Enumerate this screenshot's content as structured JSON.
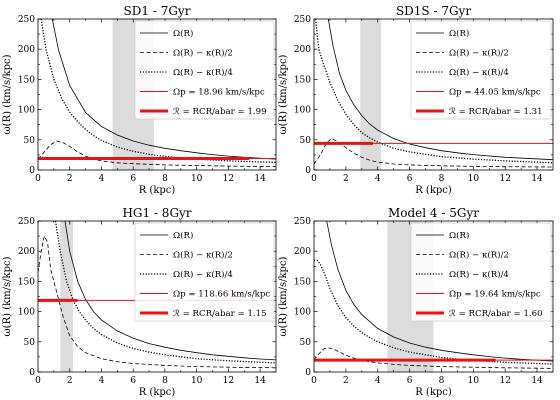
{
  "curve_legend": [
    "Ω(R)",
    "Ω(R) − κ(R)/2",
    "Ω(R) − κ(R)/4"
  ],
  "chart_data": [
    {
      "type": "line",
      "title": "SD1 - 7Gyr",
      "xlabel": "R (kpc)",
      "ylabel": "ω(R) (km/s/kpc)",
      "xlim": [
        0,
        15
      ],
      "ylim": [
        0,
        250
      ],
      "xticks": [
        0,
        2,
        4,
        6,
        8,
        10,
        12,
        14
      ],
      "yticks": [
        0,
        50,
        100,
        150,
        200,
        250
      ],
      "legend": "top-right",
      "shaded_band": [
        4.7,
        7.3
      ],
      "omega_p_label": "Ωp = 18.96 km/s/kpc",
      "ratio_label": "ℛ = RCR/abar = 1.99",
      "omega_p": 18.96,
      "bar_segment_x": [
        0,
        13.3
      ],
      "series": [
        {
          "x": [
            0.9,
            1.3,
            2,
            3,
            4,
            5,
            6,
            7,
            8,
            9,
            10,
            11,
            12,
            13,
            14,
            15
          ],
          "values": [
            250,
            198,
            140,
            95,
            72,
            58,
            48,
            41,
            36,
            32,
            28.5,
            25.5,
            23,
            21,
            19.5,
            18
          ]
        },
        {
          "x": [
            0,
            0.4,
            0.8,
            1.2,
            1.6,
            2,
            2.5,
            3,
            3.5,
            4,
            5,
            6,
            7,
            8,
            9,
            10,
            12,
            15
          ],
          "values": [
            18,
            30,
            42,
            48,
            45,
            39,
            30,
            23,
            18,
            15,
            12,
            10.5,
            9.5,
            8.5,
            8,
            7.5,
            6.5,
            5.5
          ]
        },
        {
          "x": [
            0.2,
            0.5,
            1,
            1.5,
            2,
            2.5,
            3,
            3.5,
            4,
            5,
            6,
            7,
            8,
            10,
            12,
            15
          ],
          "values": [
            250,
            200,
            150,
            118,
            96,
            80,
            67,
            57,
            49,
            38,
            31,
            26,
            22.5,
            18,
            15,
            12.5
          ]
        }
      ]
    },
    {
      "type": "line",
      "title": "SD1S - 7Gyr",
      "xlabel": "R (kpc)",
      "ylabel": "ω(R) (km/s/kpc)",
      "xlim": [
        0,
        15
      ],
      "ylim": [
        0,
        250
      ],
      "xticks": [
        0,
        2,
        4,
        6,
        8,
        10,
        12,
        14
      ],
      "yticks": [
        0,
        50,
        100,
        150,
        200,
        250
      ],
      "legend": "top-right",
      "shaded_band": [
        2.9,
        4.2
      ],
      "omega_p_label": "Ωp = 44.05 km/s/kpc",
      "ratio_label": "ℛ = RCR/abar = 1.31",
      "omega_p": 44.05,
      "bar_segment_x": [
        0,
        3.7
      ],
      "series": [
        {
          "x": [
            0.9,
            1.2,
            1.6,
            2,
            2.5,
            3,
            3.5,
            4,
            5,
            6,
            7,
            8,
            9,
            10,
            12,
            15
          ],
          "values": [
            250,
            205,
            160,
            132,
            108,
            90,
            76,
            66,
            52,
            43,
            37,
            32,
            28.5,
            25.5,
            21,
            17
          ]
        },
        {
          "x": [
            0,
            0.4,
            0.8,
            1.1,
            1.5,
            2,
            2.5,
            3,
            3.5,
            4,
            5,
            6,
            8,
            10,
            12,
            15
          ],
          "values": [
            10,
            25,
            45,
            52,
            47,
            37,
            28,
            21,
            16,
            13,
            10,
            8.5,
            7,
            6,
            5.5,
            5
          ]
        },
        {
          "x": [
            0.1,
            0.3,
            0.6,
            1,
            1.5,
            2,
            2.5,
            3,
            3.5,
            4,
            5,
            6,
            8,
            10,
            12,
            15
          ],
          "values": [
            250,
            200,
            175,
            145,
            115,
            92,
            75,
            62,
            53,
            46,
            36,
            30,
            22,
            18,
            15,
            12
          ]
        }
      ]
    },
    {
      "type": "line",
      "title": "HG1 - 8Gyr",
      "xlabel": "R (kpc)",
      "ylabel": "ω(R) (km/s/kpc)",
      "xlim": [
        0,
        15
      ],
      "ylim": [
        0,
        250
      ],
      "xticks": [
        0,
        2,
        4,
        6,
        8,
        10,
        12,
        14
      ],
      "yticks": [
        0,
        50,
        100,
        150,
        200,
        250
      ],
      "legend": "top-right",
      "shaded_band": [
        1.4,
        2.2
      ],
      "omega_p_label": "Ωp = 118.66 km/s/kpc",
      "ratio_label": "ℛ = RCR/abar = 1.15",
      "omega_p": 118.66,
      "bar_segment_x": [
        0,
        2.5
      ],
      "series": [
        {
          "x": [
            1.7,
            2,
            2.5,
            3,
            3.5,
            4,
            5,
            6,
            7,
            8,
            9,
            10,
            11,
            12,
            13,
            14,
            15
          ],
          "values": [
            250,
            200,
            150,
            120,
            100,
            86,
            68,
            56,
            47,
            41,
            36,
            32,
            28.5,
            26,
            23.5,
            21.5,
            20
          ]
        },
        {
          "x": [
            0,
            0.2,
            0.4,
            0.6,
            0.8,
            1,
            1.3,
            1.6,
            2,
            2.5,
            3,
            4,
            5,
            6,
            8,
            10,
            12,
            15
          ],
          "values": [
            165,
            200,
            225,
            215,
            170,
            150,
            120,
            90,
            60,
            42,
            32,
            22,
            17,
            14,
            11,
            9,
            8,
            7
          ]
        },
        {
          "x": [
            1.1,
            1.4,
            1.8,
            2.2,
            2.6,
            3,
            3.5,
            4,
            5,
            6,
            7,
            8,
            10,
            12,
            15
          ],
          "values": [
            250,
            200,
            150,
            120,
            100,
            86,
            72,
            62,
            48,
            39,
            33,
            28.5,
            22,
            18.5,
            15
          ]
        }
      ]
    },
    {
      "type": "line",
      "title": "Model 4 - 5Gyr",
      "xlabel": "R (kpc)",
      "ylabel": "ω(R) (km/s/kpc)",
      "xlim": [
        0,
        15
      ],
      "ylim": [
        0,
        250
      ],
      "xticks": [
        0,
        2,
        4,
        6,
        8,
        10,
        12,
        14
      ],
      "yticks": [
        0,
        50,
        100,
        150,
        200,
        250
      ],
      "legend": "top-right",
      "shaded_band": [
        4.6,
        7.5
      ],
      "omega_p_label": "Ωp = 19.64 km/s/kpc",
      "ratio_label": "ℛ = RCR/abar = 1.60",
      "omega_p": 19.64,
      "bar_segment_x": [
        0,
        11.4
      ],
      "series": [
        {
          "x": [
            0.8,
            1.1,
            1.5,
            2,
            2.5,
            3,
            4,
            5,
            6,
            7,
            8,
            9,
            10,
            11,
            12,
            13,
            14,
            15
          ],
          "values": [
            250,
            210,
            170,
            135,
            112,
            95,
            72,
            58,
            48,
            41,
            36,
            32,
            28.5,
            25.5,
            23,
            21,
            19.5,
            18
          ]
        },
        {
          "x": [
            0,
            0.3,
            0.6,
            0.9,
            1.2,
            1.6,
            2,
            2.5,
            3,
            4,
            5,
            6,
            8,
            10,
            12,
            15
          ],
          "values": [
            20,
            30,
            38,
            40,
            38,
            33,
            28,
            23,
            19,
            15,
            12.5,
            11,
            9,
            8,
            7,
            6
          ]
        },
        {
          "x": [
            0,
            0.2,
            0.4,
            0.7,
            1,
            1.5,
            2,
            2.5,
            3,
            3.5,
            4,
            5,
            6,
            8,
            10,
            12,
            15
          ],
          "values": [
            185,
            185,
            178,
            160,
            138,
            110,
            90,
            76,
            65,
            57,
            50,
            40,
            33,
            24,
            19,
            16,
            13
          ]
        }
      ]
    }
  ]
}
